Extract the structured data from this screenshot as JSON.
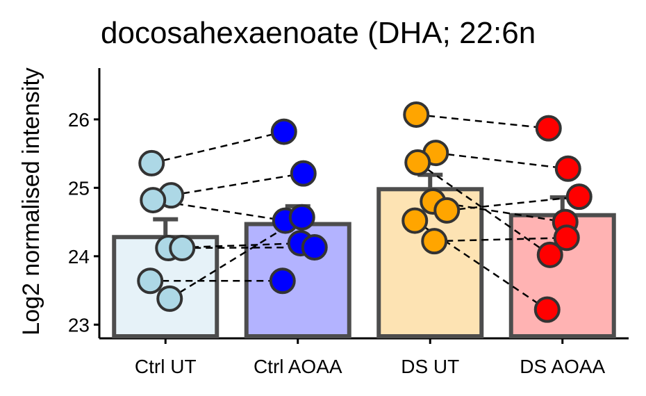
{
  "chart_data": {
    "type": "bar",
    "title": "docosahexaenoate (DHA; 22:6n",
    "y_label": "Log2 normalised intensity",
    "categories": [
      "Ctrl UT",
      "Ctrl AOAA",
      "DS UT",
      "DS AOAA"
    ],
    "values": [
      24.28,
      24.47,
      24.98,
      24.6
    ],
    "errors": [
      0.26,
      0.26,
      0.21,
      0.26
    ],
    "colors": [
      "#e6f2f8",
      "#b3b3ff",
      "#fde3b3",
      "#ffb3b3"
    ],
    "point_colors": [
      "#add8e6",
      "#0000ff",
      "#ffa500",
      "#ff0000"
    ],
    "points": [
      [
        25.36,
        24.89,
        24.82,
        24.12,
        24.12,
        23.64,
        23.38
      ],
      [
        25.82,
        25.21,
        24.52,
        24.19,
        24.13,
        23.64,
        24.57
      ],
      [
        26.07,
        25.51,
        25.37,
        24.8,
        24.67,
        24.52,
        24.22
      ],
      [
        25.87,
        25.28,
        24.02,
        24.5,
        24.87,
        23.22,
        24.27
      ]
    ],
    "pairs": [
      [
        0,
        1
      ],
      [
        2,
        3
      ]
    ],
    "ylim": [
      22.8,
      26.75
    ],
    "yticks": [
      23,
      24,
      25,
      26
    ]
  }
}
